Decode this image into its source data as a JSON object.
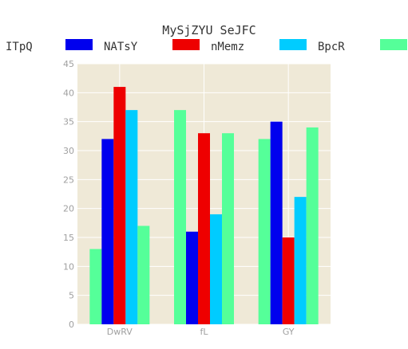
{
  "chart_data": {
    "type": "bar",
    "title": "MySjZYU SeJFC",
    "xlabel": "",
    "ylabel": "",
    "categories": [
      "DwRV",
      "fL",
      "GY"
    ],
    "ylim": [
      0,
      45
    ],
    "yticks": [
      0,
      5,
      10,
      15,
      20,
      25,
      30,
      35,
      40,
      45
    ],
    "grid": true,
    "legend": {
      "title": "ITpQ",
      "placement": "top"
    },
    "series": [
      {
        "name": "",
        "color": "#55ff99",
        "values": [
          13,
          37,
          32
        ]
      },
      {
        "name": "NATsY",
        "color": "#0000ee",
        "values": [
          32,
          16,
          35
        ]
      },
      {
        "name": "nMemz",
        "color": "#ee0000",
        "values": [
          41,
          33,
          15
        ]
      },
      {
        "name": "BpcR",
        "color": "#00ccff",
        "values": [
          37,
          19,
          22
        ]
      },
      {
        "name": "",
        "color": "#55ff99",
        "values": [
          17,
          33,
          34
        ]
      }
    ],
    "colors": {
      "plot_background": "#efe9d7",
      "grid": "#ffffff",
      "tick_text": "#a0a0a0"
    }
  }
}
